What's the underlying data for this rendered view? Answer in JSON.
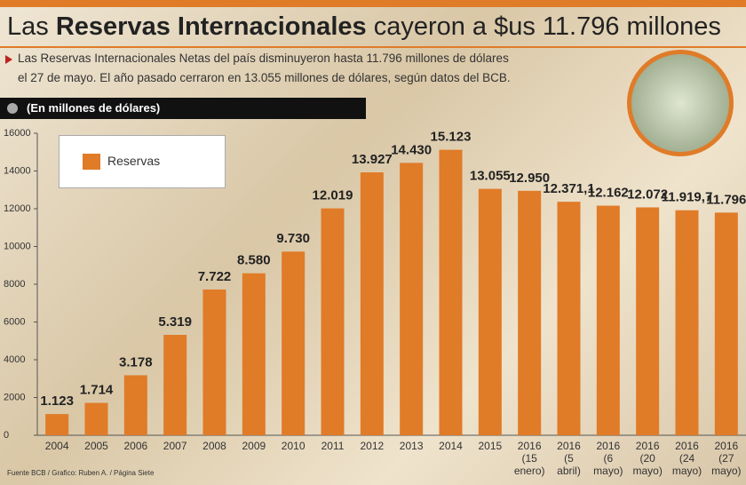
{
  "header": {
    "title_parts": [
      "Las ",
      "Reservas Internacionales",
      " cayeron a $us 11.796 millones"
    ],
    "subtitle_lines": [
      "Las Reservas Internacionales Netas del país disminuyeron hasta 11.796 millones de dólares",
      "el  27 de mayo. El año pasado cerraron en  13.055 millones de dólares, según datos del BCB."
    ],
    "unit_note": "(En millones de dólares)",
    "source": "Fuente BCB / Grafico: Ruben A. / Página Siete"
  },
  "chart_data": {
    "type": "bar",
    "categories": [
      "2004",
      "2005",
      "2006",
      "2007",
      "2008",
      "2009",
      "2010",
      "2011",
      "2012",
      "2013",
      "2014",
      "2015",
      "2016 (15 enero)",
      "2016 (5 abril)",
      "2016 (6 mayo)",
      "2016 (20 mayo)",
      "2016 (24 mayo)",
      "2016 (27 mayo)"
    ],
    "series": [
      {
        "name": "Reservas",
        "color": "#e07b28",
        "values": [
          1123,
          1714,
          3178,
          5319,
          7722,
          8580,
          9730,
          12019,
          13927,
          14430,
          15123,
          13055,
          12950,
          12371.1,
          12162,
          12072,
          11919.7,
          11796
        ],
        "value_labels": [
          "1.123",
          "1.714",
          "3.178",
          "5.319",
          "7.722",
          "8.580",
          "9.730",
          "12.019",
          "13.927",
          "14.430",
          "15.123",
          "13.055",
          "12.950",
          "12.371,1",
          "12.162",
          "12.072",
          "11.919,7",
          "11.796"
        ]
      }
    ],
    "ylim": [
      0,
      16000
    ],
    "yticks": [
      0,
      2000,
      4000,
      6000,
      8000,
      10000,
      12000,
      14000,
      16000
    ],
    "grid": false
  }
}
